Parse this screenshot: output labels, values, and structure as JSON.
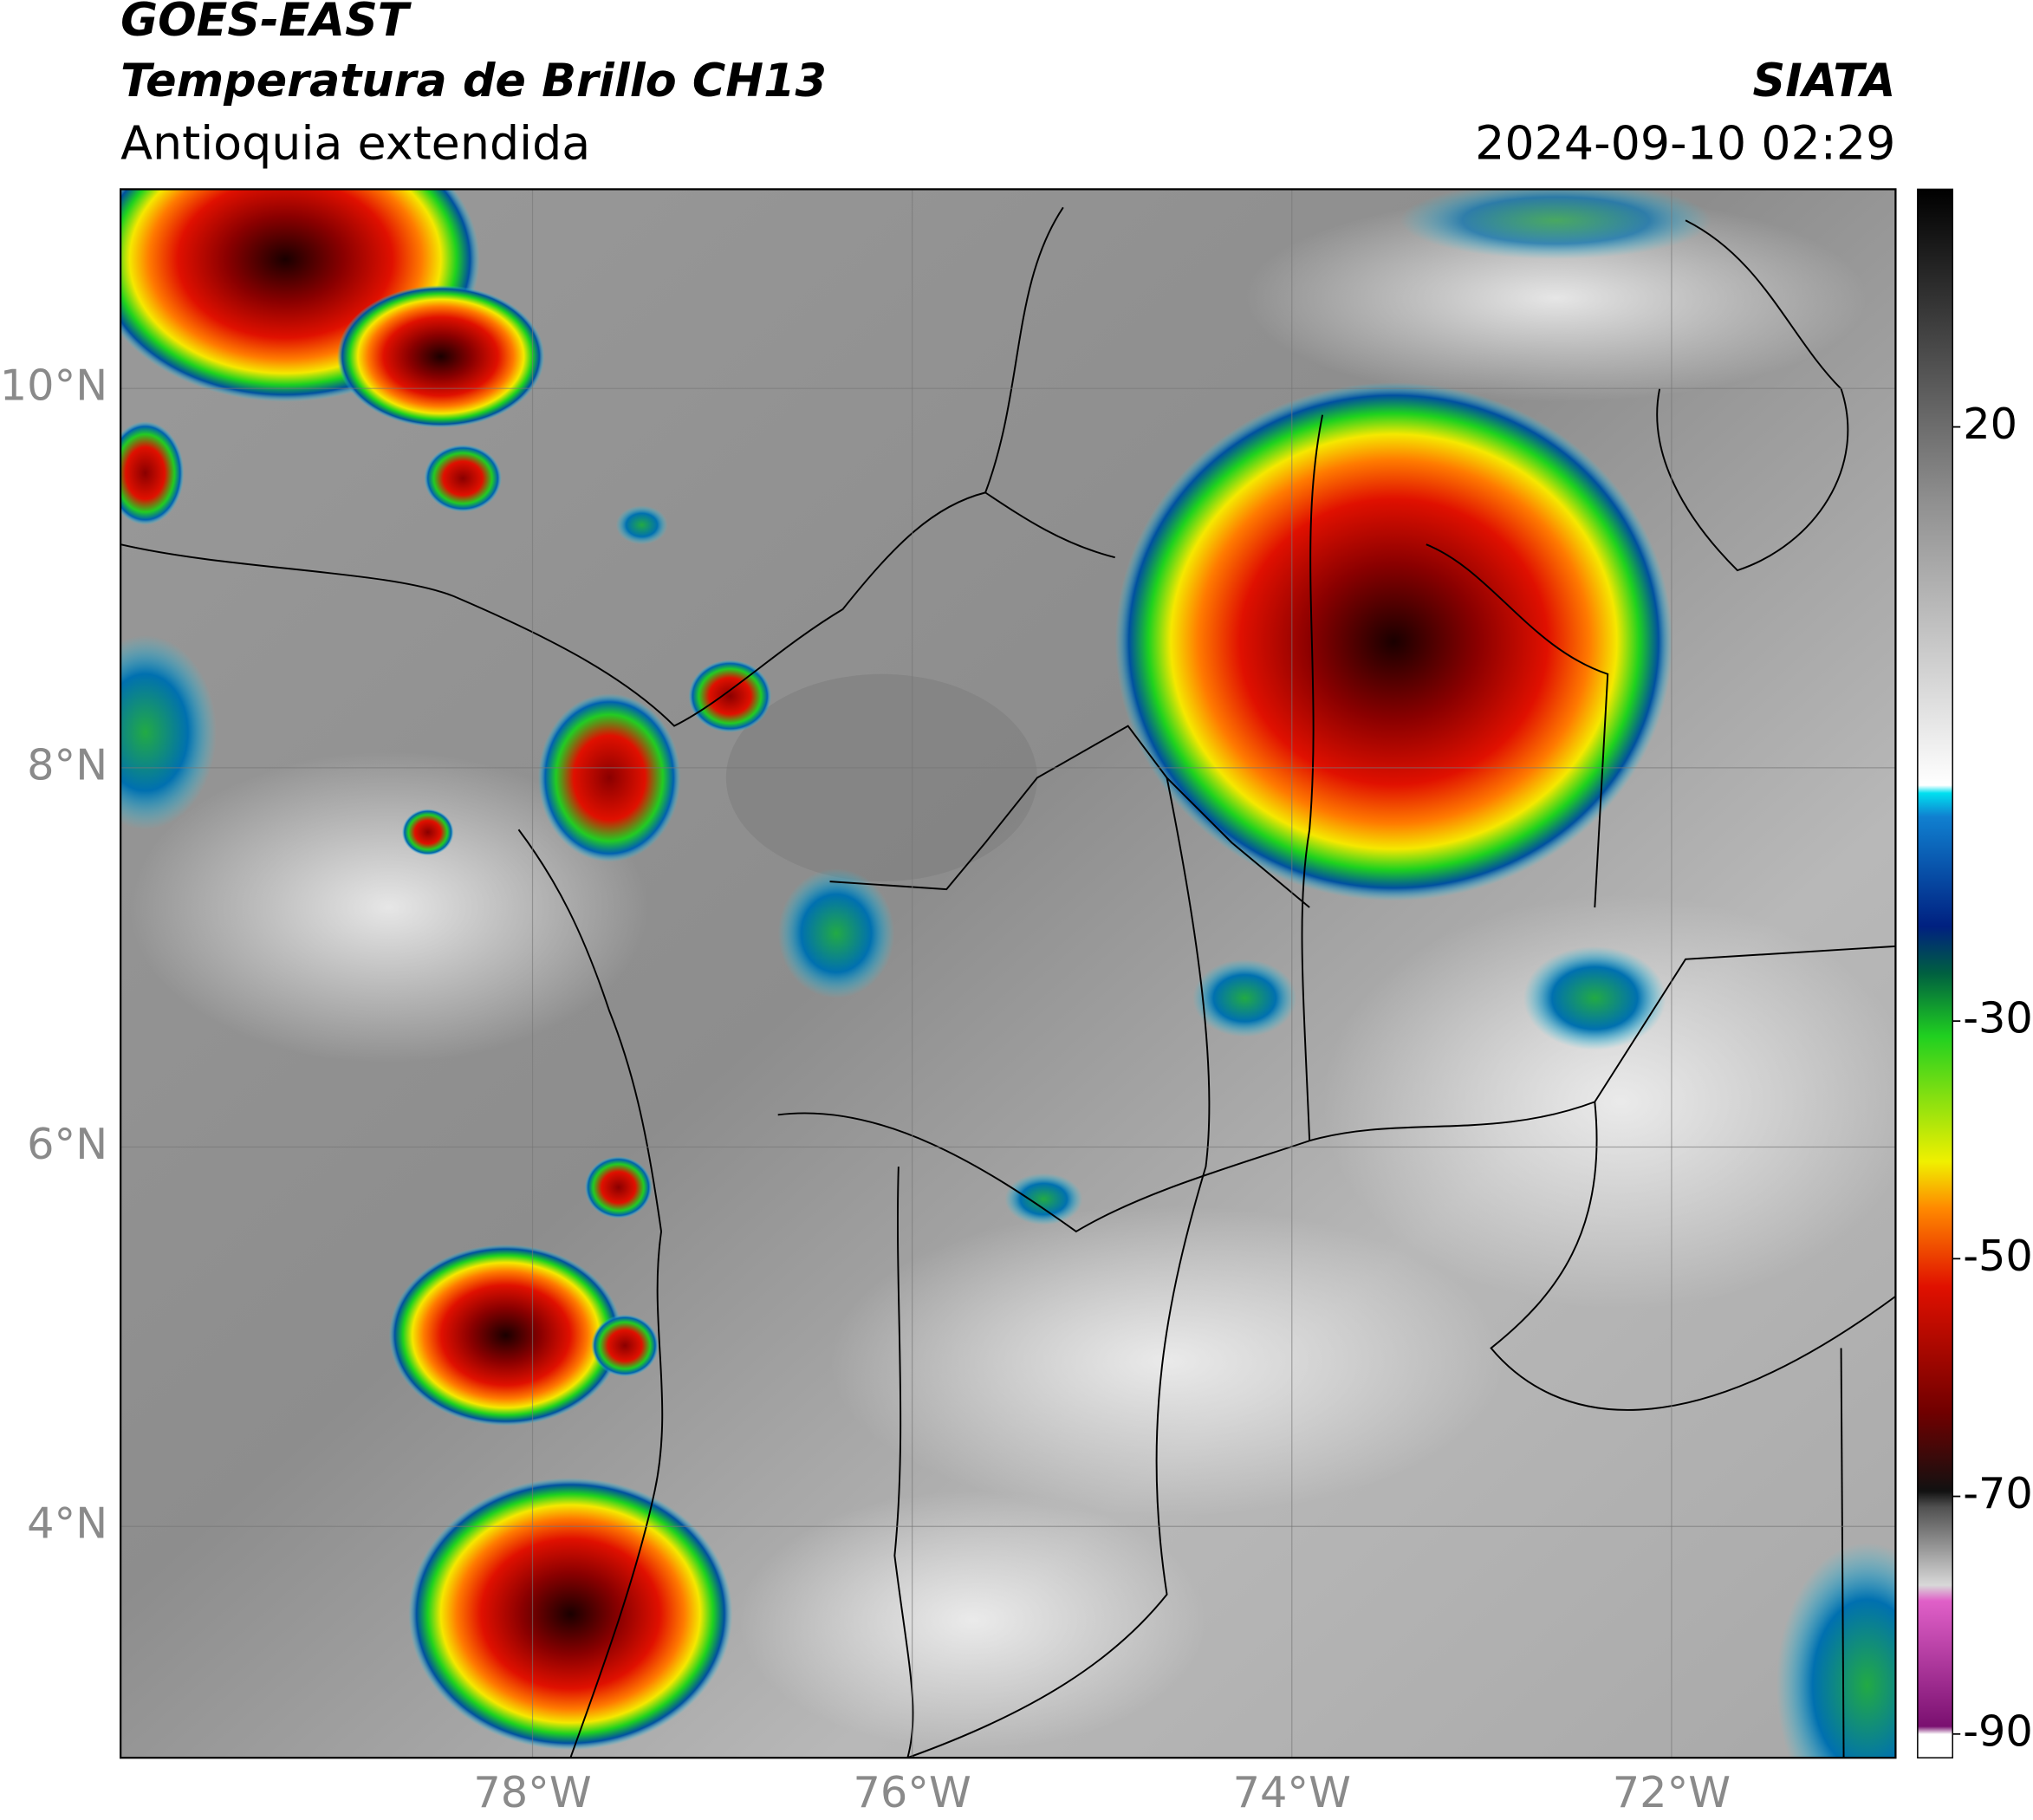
{
  "header": {
    "title": "GOES-EAST",
    "subtitle": "Temperatura de Brillo CH13",
    "region": "Antioquia extendida",
    "source": "SIATA",
    "datetime": "2024-09-10 02:29"
  },
  "map": {
    "xlim": [
      -80.17,
      -70.82
    ],
    "ylim": [
      2.78,
      11.05
    ],
    "xticks": [
      {
        "value": -78,
        "label": "78°W"
      },
      {
        "value": -76,
        "label": "76°W"
      },
      {
        "value": -74,
        "label": "74°W"
      },
      {
        "value": -72,
        "label": "72°W"
      }
    ],
    "yticks": [
      {
        "value": 4,
        "label": "4°N"
      },
      {
        "value": 6,
        "label": "6°N"
      },
      {
        "value": 8,
        "label": "8°N"
      },
      {
        "value": 10,
        "label": "10°N"
      }
    ],
    "grid": true
  },
  "colorbar": {
    "clim": [
      -92,
      40
    ],
    "ticks": [
      -90,
      -70,
      -50,
      -30,
      20
    ]
  }
}
